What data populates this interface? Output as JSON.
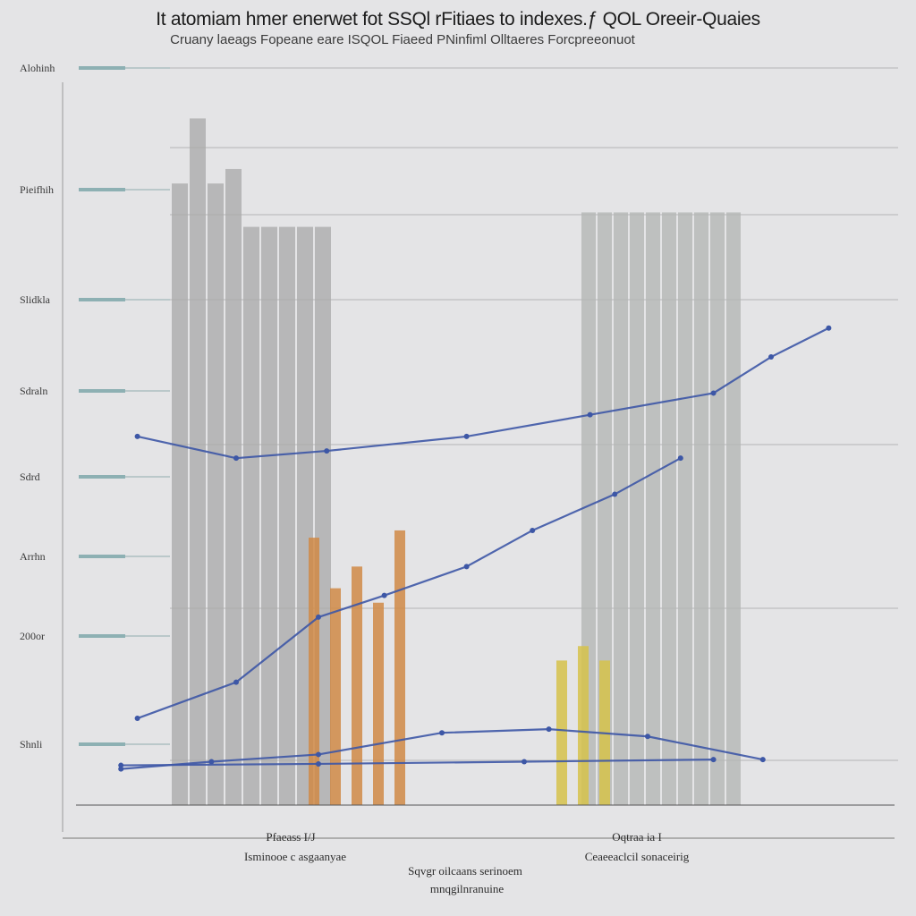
{
  "title": "It atomiam hmer enerwet fot SSQl rFitiaes to indexes.ƒ QOL Oreeir-Quaies",
  "subtitle": "Cruany laeags Fopeane eare ISQOL Fiaeed PNinfiml Olltaeres Forcpreeonuot",
  "chart_data": {
    "type": "bar",
    "ylabel": "",
    "xlabel": "",
    "y_tick_labels": [
      "Alohinh",
      "Pieifhih",
      "Slidkla",
      "Sdraln",
      "Sdrd",
      "Arrhn",
      "200or",
      "Shnli"
    ],
    "x_labels": [
      {
        "line1": "Pfaeass I/J",
        "line2": "Isminooe c asgaanyae"
      },
      {
        "line1": "Oqtraa ia I",
        "line2": "Ceaeeaclcil sonaceirig"
      }
    ],
    "center_caption": {
      "line1": "Sqvgr oilcaans serinoem",
      "line2": "mnqgilnranuine"
    },
    "ylim": [
      0,
      100
    ],
    "series": [
      {
        "group": "left-gray",
        "color": "#aaaaaa",
        "values": [
          86,
          95,
          86,
          88,
          80,
          80,
          80,
          80,
          80
        ]
      },
      {
        "group": "orange",
        "color": "#d08a45",
        "values": [
          37,
          30,
          33,
          28,
          38
        ]
      },
      {
        "group": "right-gray",
        "color": "#b4b6b4",
        "values": [
          82,
          82,
          82,
          82,
          82,
          82,
          82,
          82,
          82,
          82
        ]
      },
      {
        "group": "yellow",
        "color": "#d6c24a",
        "values": [
          20,
          22,
          20
        ]
      }
    ],
    "lines": [
      {
        "color": "#3d57a6",
        "values": [
          [
            0.08,
            51
          ],
          [
            0.2,
            48
          ],
          [
            0.31,
            49
          ],
          [
            0.48,
            51
          ],
          [
            0.63,
            54
          ],
          [
            0.78,
            57
          ],
          [
            0.85,
            62
          ],
          [
            0.92,
            66
          ]
        ]
      },
      {
        "color": "#3d57a6",
        "values": [
          [
            0.08,
            12
          ],
          [
            0.2,
            17
          ],
          [
            0.3,
            26
          ],
          [
            0.38,
            29
          ],
          [
            0.48,
            33
          ],
          [
            0.56,
            38
          ],
          [
            0.66,
            43
          ],
          [
            0.74,
            48
          ]
        ]
      },
      {
        "color": "#3d57a6",
        "values": [
          [
            0.06,
            5
          ],
          [
            0.17,
            6
          ],
          [
            0.3,
            7
          ],
          [
            0.45,
            10
          ],
          [
            0.58,
            10.5
          ],
          [
            0.7,
            9.5
          ],
          [
            0.84,
            6.3
          ]
        ]
      },
      {
        "color": "#3d57a6",
        "values": [
          [
            0.06,
            5.5
          ],
          [
            0.3,
            5.7
          ],
          [
            0.55,
            6
          ],
          [
            0.78,
            6.3
          ]
        ]
      }
    ],
    "grid": true
  },
  "colors": {
    "background": "#e4e4e6",
    "line": "#3d57a6",
    "teal": "#7ea7a9"
  }
}
